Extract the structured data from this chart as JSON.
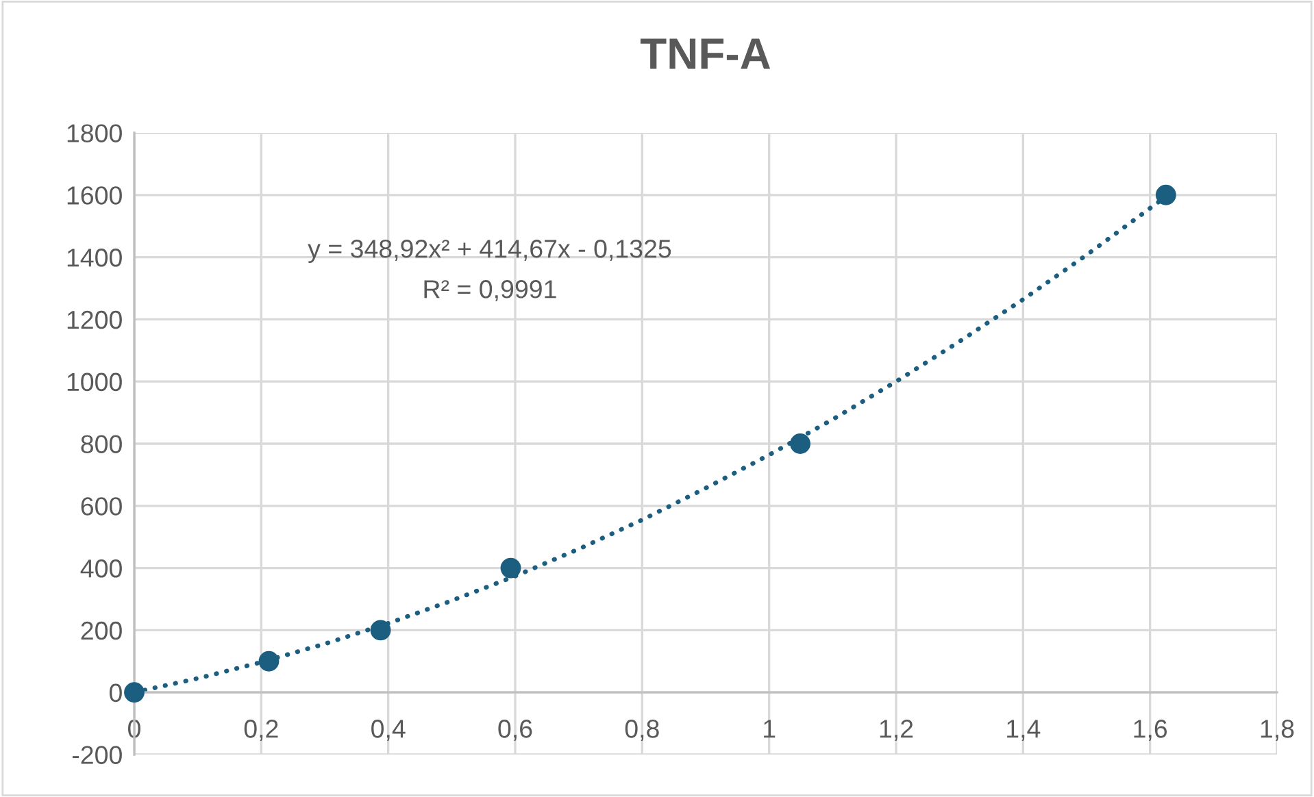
{
  "chart_data": {
    "type": "scatter",
    "title": "TNF-A",
    "series": [
      {
        "color": "#1b5e80",
        "marker": "circle",
        "x": [
          0,
          0.212,
          0.388,
          0.593,
          1.049,
          1.625
        ],
        "values": [
          0,
          100,
          200,
          400,
          800,
          1600
        ]
      },
      {
        "type": "line",
        "color": "#1b5e80",
        "marker": "none",
        "line_style": "dotted",
        "x": [
          0,
          0.1,
          0.2,
          0.3,
          0.4,
          0.5,
          0.6,
          0.7,
          0.8,
          0.9,
          1.0,
          1.1,
          1.2,
          1.3,
          1.4,
          1.5,
          1.625
        ],
        "values": [
          0,
          45,
          97,
          156,
          222,
          295,
          374,
          461,
          555,
          657,
          764,
          878,
          1000,
          1129,
          1264,
          1407,
          1595
        ]
      }
    ],
    "annotations": [
      "y = 348,92x² + 414,67x - 0,1325",
      "R² = 0,9991"
    ],
    "xlim": [
      0,
      1.8
    ],
    "xticks": [
      0,
      {
        "value": 0.2,
        "label": "0,2"
      },
      {
        "value": 0.4,
        "label": "0,4"
      },
      {
        "value": 0.6,
        "label": "0,6"
      },
      {
        "value": 0.8,
        "label": "0,8"
      },
      1,
      {
        "value": 1.2,
        "label": "1,2"
      },
      {
        "value": 1.4,
        "label": "1,4"
      },
      {
        "value": 1.6,
        "label": "1,6"
      },
      {
        "value": 1.8,
        "label": "1,8"
      }
    ],
    "ylim": [
      -200,
      1800
    ],
    "yticks": [
      -200,
      0,
      200,
      400,
      600,
      800,
      1000,
      1200,
      1400,
      1600,
      1800
    ],
    "grid": true
  }
}
